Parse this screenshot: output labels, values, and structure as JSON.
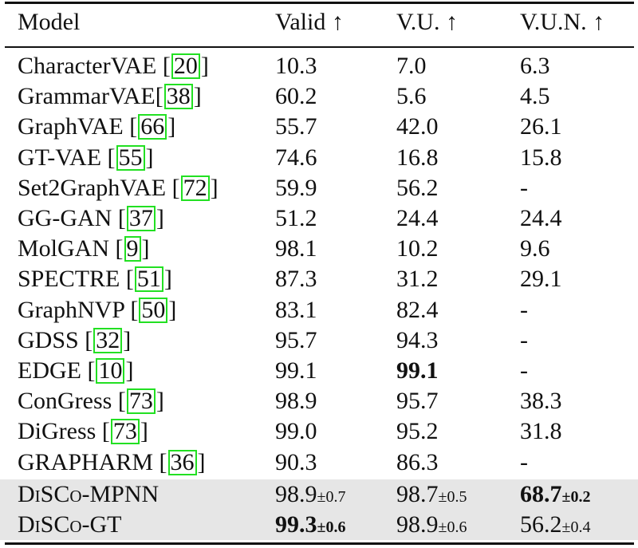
{
  "headers": [
    "Model",
    "Valid ↑",
    "V.U. ↑",
    "V.U.N. ↑"
  ],
  "rows": [
    {
      "name": "CharacterVAE",
      "sep": " [",
      "cite": "20",
      "end": "]",
      "valid": "10.3",
      "vu": "7.0",
      "vun": "6.3"
    },
    {
      "name": "GrammarVAE",
      "sep": "[",
      "cite": "38",
      "end": "]",
      "valid": "60.2",
      "vu": "5.6",
      "vun": "4.5"
    },
    {
      "name": "GraphVAE",
      "sep": " [",
      "cite": "66",
      "end": "]",
      "valid": "55.7",
      "vu": "42.0",
      "vun": "26.1"
    },
    {
      "name": "GT-VAE",
      "sep": " [",
      "cite": "55",
      "end": "]",
      "valid": "74.6",
      "vu": "16.8",
      "vun": "15.8"
    },
    {
      "name": "Set2GraphVAE",
      "sep": " [",
      "cite": "72",
      "end": "]",
      "valid": "59.9",
      "vu": "56.2",
      "vun": "-"
    },
    {
      "name": "GG-GAN",
      "sep": " [",
      "cite": "37",
      "end": "]",
      "valid": "51.2",
      "vu": "24.4",
      "vun": "24.4"
    },
    {
      "name": "MolGAN",
      "sep": " [",
      "cite": "9",
      "end": "]",
      "valid": "98.1",
      "vu": "10.2",
      "vun": "9.6"
    },
    {
      "name": "SPECTRE",
      "sep": " [",
      "cite": "51",
      "end": "]",
      "valid": "87.3",
      "vu": "31.2",
      "vun": "29.1"
    },
    {
      "name": "GraphNVP",
      "sep": " [",
      "cite": "50",
      "end": "]",
      "valid": "83.1",
      "vu": "82.4",
      "vun": "-"
    },
    {
      "name": "GDSS",
      "sep": " [",
      "cite": "32",
      "end": "]",
      "valid": "95.7",
      "vu": "94.3",
      "vun": "-"
    },
    {
      "name": "EDGE",
      "sep": " [",
      "cite": "10",
      "end": "]",
      "valid": "99.1",
      "vu": "99.1",
      "vun": "-"
    },
    {
      "name": "ConGress",
      "sep": " [",
      "cite": "73",
      "end": "]",
      "valid": "98.9",
      "vu": "95.7",
      "vun": "38.3"
    },
    {
      "name": "DiGress",
      "sep": " [",
      "cite": "73",
      "end": "]",
      "valid": "99.0",
      "vu": "95.2",
      "vun": "31.8"
    },
    {
      "name": "GRAPHARM",
      "sep": " [",
      "cite": "36",
      "end": "]",
      "valid": "90.3",
      "vu": "86.3",
      "vun": "-"
    }
  ],
  "ours": [
    {
      "name": "DiSCo-MPNN",
      "valid": "98.9",
      "valid_pm": "±0.7",
      "vu": "98.7",
      "vu_pm": "±0.5",
      "vun": "68.7",
      "vun_pm": "±0.2"
    },
    {
      "name": "DiSCo-GT",
      "valid": "99.3",
      "valid_pm": "±0.6",
      "vu": "98.9",
      "vu_pm": "±0.6",
      "vun": "56.2",
      "vun_pm": "±0.4"
    }
  ],
  "colors": {
    "citation_box": "#22e022",
    "highlight_row": "#e6e6e6"
  }
}
